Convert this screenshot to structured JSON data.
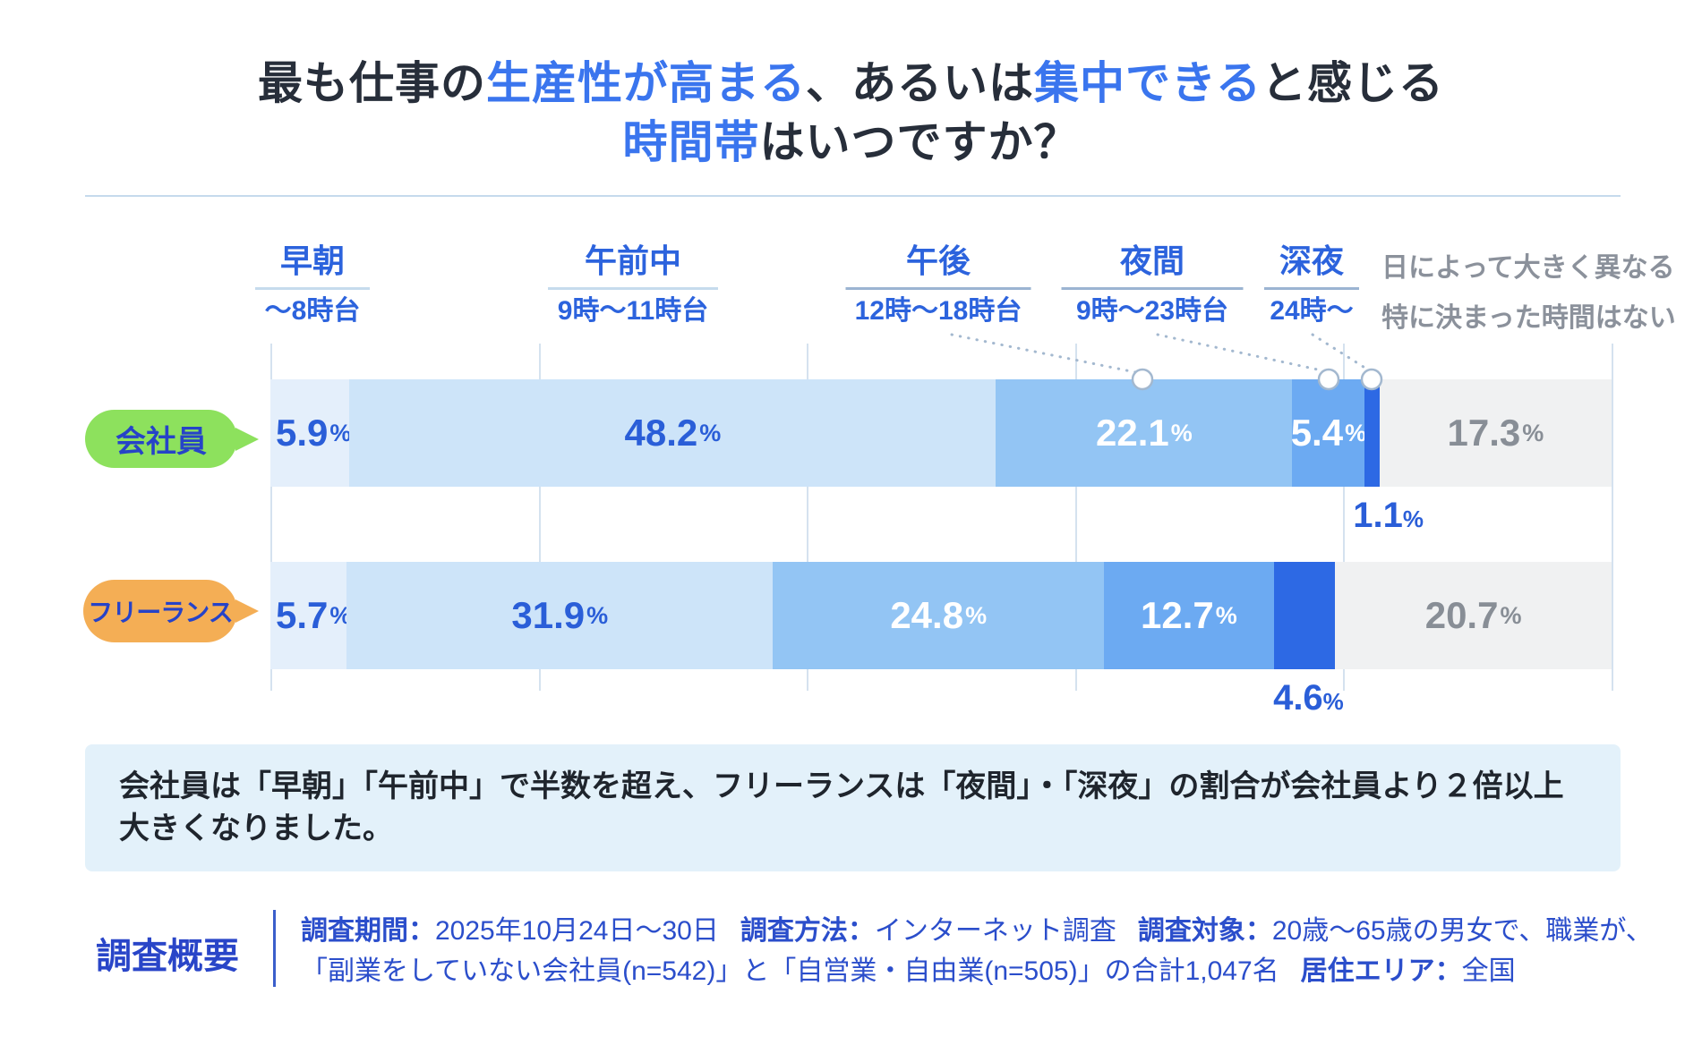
{
  "title": {
    "line1_parts": [
      {
        "text": "最も仕事の",
        "hl": false
      },
      {
        "text": "生産性が高まる",
        "hl": true
      },
      {
        "text": "、あるいは",
        "hl": false
      },
      {
        "text": "集中できる",
        "hl": true
      },
      {
        "text": "と感じる",
        "hl": false
      }
    ],
    "line2_parts": [
      {
        "text": "時間帯",
        "hl": true
      },
      {
        "text": "はいつですか？",
        "hl": false
      }
    ]
  },
  "chart_data": {
    "type": "bar",
    "orientation": "horizontal-stacked",
    "unit": "%",
    "categories": [
      {
        "label": "早朝",
        "sublabel": "〜8時台"
      },
      {
        "label": "午前中",
        "sublabel": "9時〜11時台"
      },
      {
        "label": "午後",
        "sublabel": "12時〜18時台"
      },
      {
        "label": "夜間",
        "sublabel": "9時〜23時台"
      },
      {
        "label": "深夜",
        "sublabel": "24時〜"
      }
    ],
    "other_category_note": [
      "日によって大きく異なる",
      "特に決まった時間はない"
    ],
    "series": [
      {
        "name": "会社員",
        "values": [
          5.9,
          48.2,
          22.1,
          5.4,
          1.1,
          17.3
        ]
      },
      {
        "name": "フリーランス",
        "values": [
          5.7,
          31.9,
          24.8,
          12.7,
          4.6,
          20.7
        ]
      }
    ],
    "colors": {
      "segments": [
        "#e4effb",
        "#cde4f9",
        "#93c5f4",
        "#6caaf2",
        "#2d69e4",
        "#f0f1f2"
      ],
      "series_badges": [
        "#8de15d",
        "#f4ae55"
      ]
    },
    "legend_position": "left",
    "grid": true
  },
  "summary": {
    "line1": "会社員は「早朝」「午前中」で半数を超え、フリーランスは「夜間」・「深夜」の割合が会社員より２倍以上",
    "line2": "大きくなりました。"
  },
  "survey": {
    "heading": "調査概要",
    "line1_parts": [
      {
        "text": "調査期間：",
        "bold": true
      },
      {
        "text": "2025年10月24日〜30日",
        "bold": false
      },
      {
        "text": "gap",
        "gap": true
      },
      {
        "text": "調査方法：",
        "bold": true
      },
      {
        "text": "インターネット調査",
        "bold": false
      },
      {
        "text": "gap",
        "gap": true
      },
      {
        "text": "調査対象：",
        "bold": true
      },
      {
        "text": "20歳〜65歳の男女で、職業が、",
        "bold": false
      }
    ],
    "line2_parts": [
      {
        "text": "「副業をしていない会社員(n=542)」と「自営業・自由業(n=505)」の合計1,047名",
        "bold": false
      },
      {
        "text": "gap",
        "gap": true
      },
      {
        "text": "居住エリア：",
        "bold": true
      },
      {
        "text": "全国",
        "bold": false
      }
    ]
  }
}
